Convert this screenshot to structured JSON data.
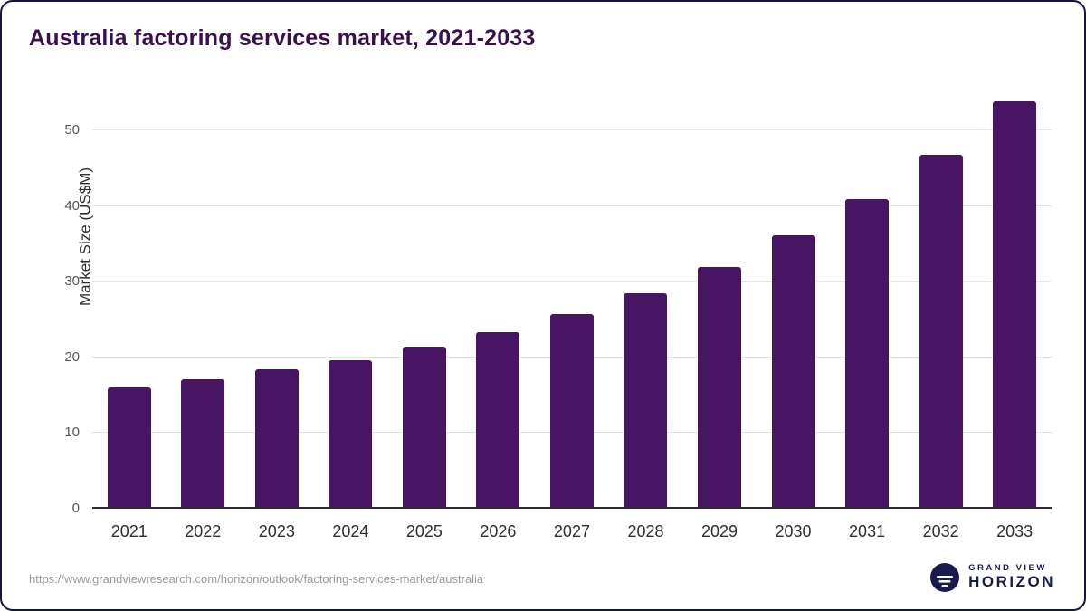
{
  "title": "Australia factoring services market, 2021-2033",
  "colors": {
    "bar": "#471563",
    "title": "#3a0f50",
    "brand": "#191b4e",
    "gridline": "#e3e3e3",
    "axis_line": "#2e2e2e",
    "url_text": "#9b9b9b"
  },
  "chart_data": {
    "type": "bar",
    "title": "Australia factoring services market, 2021-2033",
    "xlabel": "",
    "ylabel": "Market Size (US$M)",
    "categories": [
      "2021",
      "2022",
      "2023",
      "2024",
      "2025",
      "2026",
      "2027",
      "2028",
      "2029",
      "2030",
      "2031",
      "2032",
      "2033"
    ],
    "values": [
      16.0,
      17.1,
      18.4,
      19.6,
      21.4,
      23.3,
      25.7,
      28.5,
      32.0,
      36.1,
      40.9,
      46.8,
      53.8
    ],
    "ylim": [
      0,
      56
    ],
    "ymax": 56,
    "yticks": [
      0,
      10,
      20,
      30,
      40,
      50
    ],
    "grid": "horizontal",
    "legend": "none"
  },
  "footer": {
    "source_url": "https://www.grandviewresearch.com/horizon/outlook/factoring-services-market/australia",
    "brand_top": "GRAND VIEW",
    "brand_bottom": "HORIZON"
  }
}
